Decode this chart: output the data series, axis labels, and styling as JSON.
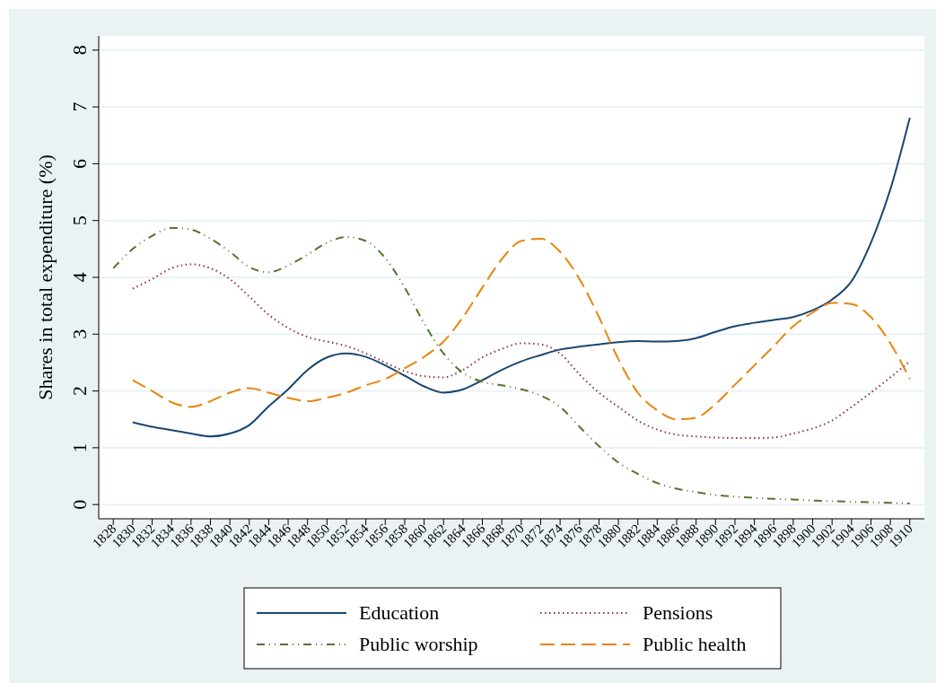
{
  "chart_data": {
    "type": "line",
    "ylabel": "Shares in total expenditure (%)",
    "xlim": [
      1826.5,
      1911.5
    ],
    "ylim": [
      -0.25,
      8.25
    ],
    "yticks": [
      0,
      1,
      2,
      3,
      4,
      5,
      6,
      7,
      8
    ],
    "xticks": [
      1828,
      1830,
      1832,
      1834,
      1836,
      1838,
      1840,
      1842,
      1844,
      1846,
      1848,
      1850,
      1852,
      1854,
      1856,
      1858,
      1860,
      1862,
      1864,
      1866,
      1868,
      1870,
      1872,
      1874,
      1876,
      1878,
      1880,
      1882,
      1884,
      1886,
      1888,
      1890,
      1892,
      1894,
      1896,
      1898,
      1900,
      1902,
      1904,
      1906,
      1908,
      1910
    ],
    "grid": "y",
    "legend": "bottom",
    "series": [
      {
        "name": "Education",
        "color": "#1a476f",
        "line_style": "solid",
        "x": [
          1830,
          1832,
          1834,
          1836,
          1838,
          1840,
          1842,
          1844,
          1846,
          1848,
          1850,
          1852,
          1854,
          1856,
          1858,
          1860,
          1862,
          1864,
          1866,
          1868,
          1870,
          1872,
          1874,
          1876,
          1878,
          1880,
          1882,
          1884,
          1886,
          1888,
          1890,
          1892,
          1894,
          1896,
          1898,
          1900,
          1902,
          1904,
          1906,
          1908,
          1910
        ],
        "values": [
          1.45,
          1.37,
          1.31,
          1.25,
          1.2,
          1.25,
          1.4,
          1.73,
          2.03,
          2.37,
          2.59,
          2.66,
          2.6,
          2.45,
          2.27,
          2.08,
          1.97,
          2.03,
          2.19,
          2.37,
          2.52,
          2.63,
          2.73,
          2.78,
          2.82,
          2.86,
          2.88,
          2.87,
          2.88,
          2.93,
          3.04,
          3.14,
          3.2,
          3.25,
          3.3,
          3.42,
          3.61,
          3.93,
          4.61,
          5.55,
          6.81
        ]
      },
      {
        "name": "Pensions",
        "color": "#90353b",
        "line_style": "dotted",
        "x": [
          1830,
          1832,
          1834,
          1836,
          1838,
          1840,
          1842,
          1844,
          1846,
          1848,
          1850,
          1852,
          1854,
          1856,
          1858,
          1860,
          1862,
          1864,
          1866,
          1868,
          1870,
          1872,
          1874,
          1876,
          1878,
          1880,
          1882,
          1884,
          1886,
          1888,
          1890,
          1892,
          1894,
          1896,
          1898,
          1900,
          1902,
          1904,
          1906,
          1908,
          1910
        ],
        "values": [
          3.8,
          3.97,
          4.16,
          4.23,
          4.16,
          3.97,
          3.66,
          3.34,
          3.11,
          2.95,
          2.87,
          2.79,
          2.66,
          2.5,
          2.35,
          2.26,
          2.24,
          2.37,
          2.59,
          2.74,
          2.84,
          2.82,
          2.66,
          2.29,
          1.97,
          1.72,
          1.48,
          1.32,
          1.23,
          1.2,
          1.18,
          1.17,
          1.17,
          1.18,
          1.25,
          1.34,
          1.48,
          1.72,
          1.97,
          2.24,
          2.52
        ]
      },
      {
        "name": "Public worship",
        "color": "#55752f",
        "line_style": "dashdot",
        "x": [
          1828,
          1830,
          1832,
          1834,
          1836,
          1838,
          1840,
          1842,
          1844,
          1846,
          1848,
          1850,
          1852,
          1854,
          1856,
          1858,
          1860,
          1862,
          1864,
          1866,
          1868,
          1870,
          1872,
          1874,
          1876,
          1878,
          1880,
          1882,
          1884,
          1886,
          1888,
          1890,
          1892,
          1894,
          1896,
          1898,
          1900,
          1902,
          1904,
          1906,
          1908,
          1910
        ],
        "values": [
          4.16,
          4.5,
          4.73,
          4.87,
          4.84,
          4.68,
          4.45,
          4.18,
          4.09,
          4.21,
          4.4,
          4.61,
          4.71,
          4.64,
          4.34,
          3.82,
          3.19,
          2.66,
          2.32,
          2.16,
          2.1,
          2.03,
          1.92,
          1.72,
          1.37,
          1.03,
          0.74,
          0.54,
          0.38,
          0.28,
          0.22,
          0.17,
          0.14,
          0.12,
          0.1,
          0.09,
          0.07,
          0.06,
          0.05,
          0.04,
          0.03,
          0.02
        ]
      },
      {
        "name": "Public health",
        "color": "#e8850c",
        "line_style": "dashed",
        "x": [
          1830,
          1832,
          1834,
          1836,
          1838,
          1840,
          1842,
          1844,
          1846,
          1848,
          1850,
          1852,
          1854,
          1856,
          1858,
          1860,
          1862,
          1864,
          1866,
          1868,
          1870,
          1872,
          1874,
          1876,
          1878,
          1880,
          1882,
          1884,
          1886,
          1888,
          1890,
          1892,
          1894,
          1896,
          1898,
          1900,
          1902,
          1904,
          1906,
          1908,
          1910
        ],
        "values": [
          2.19,
          2.0,
          1.8,
          1.72,
          1.82,
          1.97,
          2.05,
          1.97,
          1.88,
          1.82,
          1.88,
          1.97,
          2.1,
          2.21,
          2.4,
          2.6,
          2.87,
          3.3,
          3.82,
          4.32,
          4.64,
          4.68,
          4.45,
          3.97,
          3.3,
          2.56,
          1.97,
          1.66,
          1.5,
          1.53,
          1.77,
          2.11,
          2.45,
          2.79,
          3.14,
          3.38,
          3.55,
          3.53,
          3.3,
          2.84,
          2.21
        ]
      }
    ]
  }
}
